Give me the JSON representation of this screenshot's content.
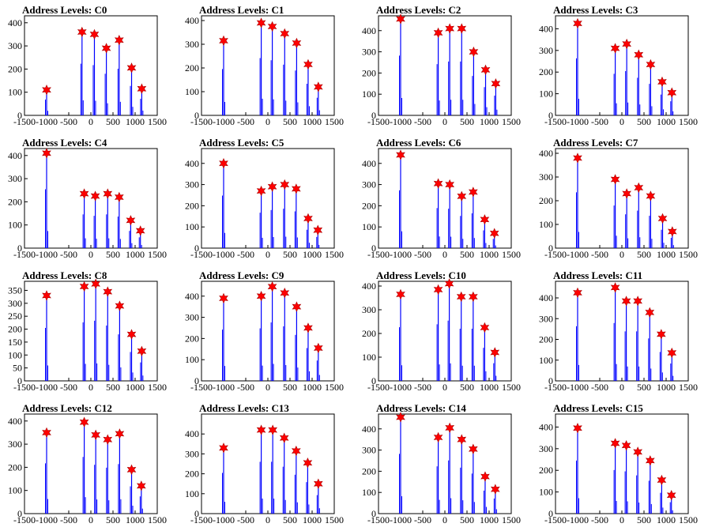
{
  "colors": {
    "spike": "#0000ff",
    "marker": "#ff0000",
    "axis": "#000000"
  },
  "x_ticks": [
    "-1500",
    "-1000",
    "-500",
    "0",
    "500",
    "1000",
    "1500"
  ],
  "chart_data": [
    {
      "type": "histogram",
      "title": "Address Levels: C0",
      "xlim": [
        -1500,
        1500
      ],
      "ylim": [
        0,
        430
      ],
      "yticks": [
        0,
        100,
        200,
        300,
        400
      ],
      "peaks_x": [
        -1000,
        -200,
        80,
        350,
        640,
        920,
        1150
      ],
      "peaks_y": [
        110,
        360,
        350,
        290,
        325,
        205,
        115
      ]
    },
    {
      "type": "histogram",
      "title": "Address Levels: C1",
      "xlim": [
        -1500,
        1500
      ],
      "ylim": [
        0,
        420
      ],
      "yticks": [
        0,
        100,
        200,
        300,
        400
      ],
      "peaks_x": [
        -1000,
        -150,
        100,
        380,
        650,
        910,
        1140
      ],
      "peaks_y": [
        315,
        390,
        375,
        345,
        305,
        215,
        120
      ]
    },
    {
      "type": "histogram",
      "title": "Address Levels: C2",
      "xlim": [
        -1500,
        1500
      ],
      "ylim": [
        0,
        470
      ],
      "yticks": [
        0,
        100,
        200,
        300,
        400
      ],
      "peaks_x": [
        -1000,
        -150,
        110,
        380,
        650,
        920,
        1150
      ],
      "peaks_y": [
        455,
        390,
        410,
        410,
        300,
        215,
        150
      ]
    },
    {
      "type": "histogram",
      "title": "Address Levels: C3",
      "xlim": [
        -1500,
        1500
      ],
      "ylim": [
        0,
        460
      ],
      "yticks": [
        0,
        100,
        200,
        300,
        400
      ],
      "peaks_x": [
        -1000,
        -150,
        110,
        380,
        650,
        910,
        1130
      ],
      "peaks_y": [
        425,
        310,
        330,
        280,
        235,
        155,
        105
      ]
    },
    {
      "type": "histogram",
      "title": "Address Levels: C4",
      "xlim": [
        -1500,
        1500
      ],
      "ylim": [
        0,
        430
      ],
      "yticks": [
        0,
        100,
        200,
        300,
        400
      ],
      "peaks_x": [
        -1000,
        -150,
        100,
        380,
        640,
        900,
        1120
      ],
      "peaks_y": [
        410,
        235,
        225,
        235,
        220,
        120,
        75
      ]
    },
    {
      "type": "histogram",
      "title": "Address Levels: C5",
      "xlim": [
        -1500,
        1500
      ],
      "ylim": [
        0,
        470
      ],
      "yticks": [
        0,
        100,
        200,
        300,
        400
      ],
      "peaks_x": [
        -1000,
        -150,
        100,
        380,
        640,
        910,
        1130
      ],
      "peaks_y": [
        400,
        270,
        290,
        300,
        280,
        140,
        85
      ]
    },
    {
      "type": "histogram",
      "title": "Address Levels: C6",
      "xlim": [
        -1500,
        1500
      ],
      "ylim": [
        0,
        470
      ],
      "yticks": [
        0,
        100,
        200,
        300,
        400
      ],
      "peaks_x": [
        -1000,
        -150,
        110,
        380,
        640,
        900,
        1120
      ],
      "peaks_y": [
        440,
        305,
        300,
        245,
        265,
        135,
        70
      ]
    },
    {
      "type": "histogram",
      "title": "Address Levels: C7",
      "xlim": [
        -1500,
        1500
      ],
      "ylim": [
        0,
        420
      ],
      "yticks": [
        0,
        100,
        200,
        300,
        400
      ],
      "peaks_x": [
        -1000,
        -150,
        110,
        380,
        650,
        920,
        1140
      ],
      "peaks_y": [
        380,
        290,
        230,
        255,
        220,
        125,
        70
      ]
    },
    {
      "type": "histogram",
      "title": "Address Levels: C8",
      "xlim": [
        -1500,
        1500
      ],
      "ylim": [
        0,
        385
      ],
      "yticks": [
        0,
        50,
        100,
        150,
        200,
        250,
        300,
        350
      ],
      "peaks_x": [
        -1000,
        -150,
        110,
        380,
        650,
        920,
        1150
      ],
      "peaks_y": [
        330,
        365,
        375,
        345,
        290,
        180,
        115
      ]
    },
    {
      "type": "histogram",
      "title": "Address Levels: C9",
      "xlim": [
        -1500,
        1500
      ],
      "ylim": [
        0,
        470
      ],
      "yticks": [
        0,
        100,
        200,
        300,
        400
      ],
      "peaks_x": [
        -1000,
        -150,
        100,
        380,
        650,
        910,
        1140
      ],
      "peaks_y": [
        390,
        400,
        445,
        415,
        350,
        250,
        155
      ]
    },
    {
      "type": "histogram",
      "title": "Address Levels: C10",
      "xlim": [
        -1500,
        1500
      ],
      "ylim": [
        0,
        420
      ],
      "yticks": [
        0,
        100,
        200,
        300,
        400
      ],
      "peaks_x": [
        -1000,
        -150,
        100,
        370,
        640,
        900,
        1130
      ],
      "peaks_y": [
        365,
        385,
        410,
        355,
        355,
        225,
        120
      ]
    },
    {
      "type": "histogram",
      "title": "Address Levels: C11",
      "xlim": [
        -1500,
        1500
      ],
      "ylim": [
        0,
        480
      ],
      "yticks": [
        0,
        100,
        200,
        300,
        400
      ],
      "peaks_x": [
        -1000,
        -150,
        100,
        360,
        630,
        890,
        1130
      ],
      "peaks_y": [
        425,
        450,
        385,
        385,
        330,
        225,
        135
      ]
    },
    {
      "type": "histogram",
      "title": "Address Levels: C12",
      "xlim": [
        -1500,
        1500
      ],
      "ylim": [
        0,
        430
      ],
      "yticks": [
        0,
        100,
        200,
        300,
        400
      ],
      "peaks_x": [
        -1000,
        -150,
        110,
        380,
        650,
        920,
        1140
      ],
      "peaks_y": [
        350,
        395,
        340,
        320,
        345,
        190,
        120
      ]
    },
    {
      "type": "histogram",
      "title": "Address Levels: C13",
      "xlim": [
        -1500,
        1500
      ],
      "ylim": [
        0,
        500
      ],
      "yticks": [
        0,
        100,
        200,
        300,
        400
      ],
      "peaks_x": [
        -1000,
        -150,
        110,
        370,
        640,
        900,
        1140
      ],
      "peaks_y": [
        330,
        420,
        420,
        380,
        315,
        255,
        150
      ]
    },
    {
      "type": "histogram",
      "title": "Address Levels: C14",
      "xlim": [
        -1500,
        1500
      ],
      "ylim": [
        0,
        470
      ],
      "yticks": [
        0,
        100,
        200,
        300,
        400
      ],
      "peaks_x": [
        -1000,
        -150,
        110,
        380,
        640,
        910,
        1140
      ],
      "peaks_y": [
        455,
        360,
        405,
        350,
        305,
        175,
        115
      ]
    },
    {
      "type": "histogram",
      "title": "Address Levels: C15",
      "xlim": [
        -1500,
        1500
      ],
      "ylim": [
        0,
        460
      ],
      "yticks": [
        0,
        100,
        200,
        300,
        400
      ],
      "peaks_x": [
        -1000,
        -150,
        100,
        360,
        640,
        900,
        1120
      ],
      "peaks_y": [
        395,
        325,
        315,
        285,
        245,
        155,
        85
      ]
    }
  ]
}
